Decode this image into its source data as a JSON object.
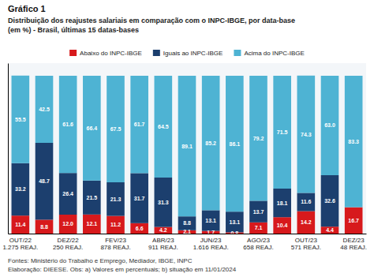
{
  "chart_data": {
    "type": "bar",
    "stacked": true,
    "title": "Gráfico 1",
    "subtitle": [
      "Distribuição dos reajustes salariais em comparação com o INPC-IBGE, por data-base",
      "(em %) - Brasil, últimas 15 datas-bases"
    ],
    "annotations": [
      "Fontes: Ministério do Trabalho e Emprego, Mediador, IBGE, INPC",
      "Elaboração: DIEESE. Obs: a) Valores em percentuais; b) situação em 11/01/2024"
    ],
    "categories": [
      "OUT/22\n1.275 REAJ.",
      null,
      "DEZ/22\n250 REAJ.",
      null,
      "FEV/23\n878 REAJ.",
      null,
      "ABR/23\n911 REAJ.",
      null,
      "JUN/23\n1.616 REAJ.",
      null,
      "AGO/23\n658 REAJ.",
      null,
      "OUT/23\n571 REAJ.",
      null,
      "DEZ/23\n48 REAJ."
    ],
    "series": [
      {
        "name": "Abaixo do INPC-IBGE",
        "color": "#d7191c",
        "values": [
          11.4,
          8.8,
          12.0,
          12.1,
          11.2,
          6.6,
          4.2,
          2.1,
          1.7,
          0.8,
          7.1,
          10.4,
          14.2,
          4.4,
          16.7
        ],
        "value_labels": [
          "11.4",
          "8.8",
          "12.0",
          "12.1",
          "11.2",
          "6.6",
          "4.2",
          "2.1",
          "1.7",
          "0.8",
          "7.1",
          "10.4",
          "14.2",
          "4.4",
          "16.7"
        ]
      },
      {
        "name": "Iguais ao INPC-IBGE",
        "color": "#1c3f6e",
        "values": [
          33.2,
          48.7,
          26.4,
          21.5,
          21.3,
          31.7,
          31.3,
          8.8,
          13.1,
          13.1,
          13.7,
          18.1,
          11.6,
          32.6,
          0.0
        ],
        "value_labels": [
          "33.2",
          "48.7",
          "26.4",
          "21.5",
          "21.3",
          "31.7",
          "31.3",
          "8.8",
          "13.1",
          "13.1",
          "13.7",
          "18.1",
          "11.6",
          "32.6",
          null
        ]
      },
      {
        "name": "Acima do INPC-IBGE",
        "color": "#4eb3d3",
        "values": [
          55.5,
          42.5,
          61.6,
          66.4,
          67.5,
          61.7,
          64.5,
          89.1,
          85.2,
          86.1,
          79.2,
          71.5,
          74.3,
          63.0,
          83.3
        ],
        "value_labels": [
          "55.5",
          "42.5",
          "61.6",
          "66.4",
          "67.5",
          "61.7",
          "64.5",
          "89.1",
          "85.2",
          "86.1",
          "79.2",
          "71.5",
          "74.3",
          "63.0",
          "83.3"
        ]
      }
    ],
    "ylim": [
      0,
      108
    ],
    "yticks": [],
    "tick_labels": "x",
    "data_labels": true,
    "legend": "top",
    "grid": false
  }
}
